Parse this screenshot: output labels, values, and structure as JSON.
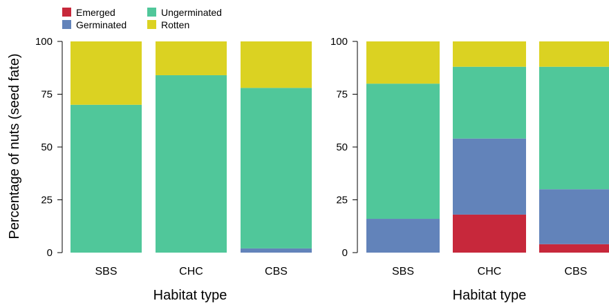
{
  "chart_data": {
    "type": "bar",
    "stacked": true,
    "ylabel": "Percentage of nuts (seed fate)",
    "legend": {
      "placement": "top-left",
      "entries": [
        {
          "key": "emerged",
          "label": "Emerged"
        },
        {
          "key": "germinated",
          "label": "Germinated"
        },
        {
          "key": "ungerminated",
          "label": "Ungerminated"
        },
        {
          "key": "rotten",
          "label": "Rotten"
        }
      ]
    },
    "colors": {
      "emerged": "#C7283B",
      "germinated": "#6283BA",
      "ungerminated": "#50C79A",
      "rotten": "#DBD222"
    },
    "panels": [
      {
        "xlabel": "Habitat type",
        "ylim": [
          0,
          100
        ],
        "yticks": [
          0,
          25,
          50,
          75,
          100
        ],
        "categories": [
          "SBS",
          "CHC",
          "CBS"
        ],
        "series": [
          {
            "key": "emerged",
            "values": [
              0,
              0,
              0
            ]
          },
          {
            "key": "germinated",
            "values": [
              0,
              0,
              2
            ]
          },
          {
            "key": "ungerminated",
            "values": [
              70,
              84,
              76
            ]
          },
          {
            "key": "rotten",
            "values": [
              30,
              16,
              22
            ]
          }
        ]
      },
      {
        "xlabel": "Habitat type",
        "ylim": [
          0,
          100
        ],
        "yticks": [
          0,
          25,
          50,
          75,
          100
        ],
        "categories": [
          "SBS",
          "CHC",
          "CBS"
        ],
        "series": [
          {
            "key": "emerged",
            "values": [
              0,
              18,
              4
            ]
          },
          {
            "key": "germinated",
            "values": [
              16,
              36,
              26
            ]
          },
          {
            "key": "ungerminated",
            "values": [
              64,
              34,
              58
            ]
          },
          {
            "key": "rotten",
            "values": [
              20,
              12,
              12
            ]
          }
        ]
      }
    ]
  }
}
